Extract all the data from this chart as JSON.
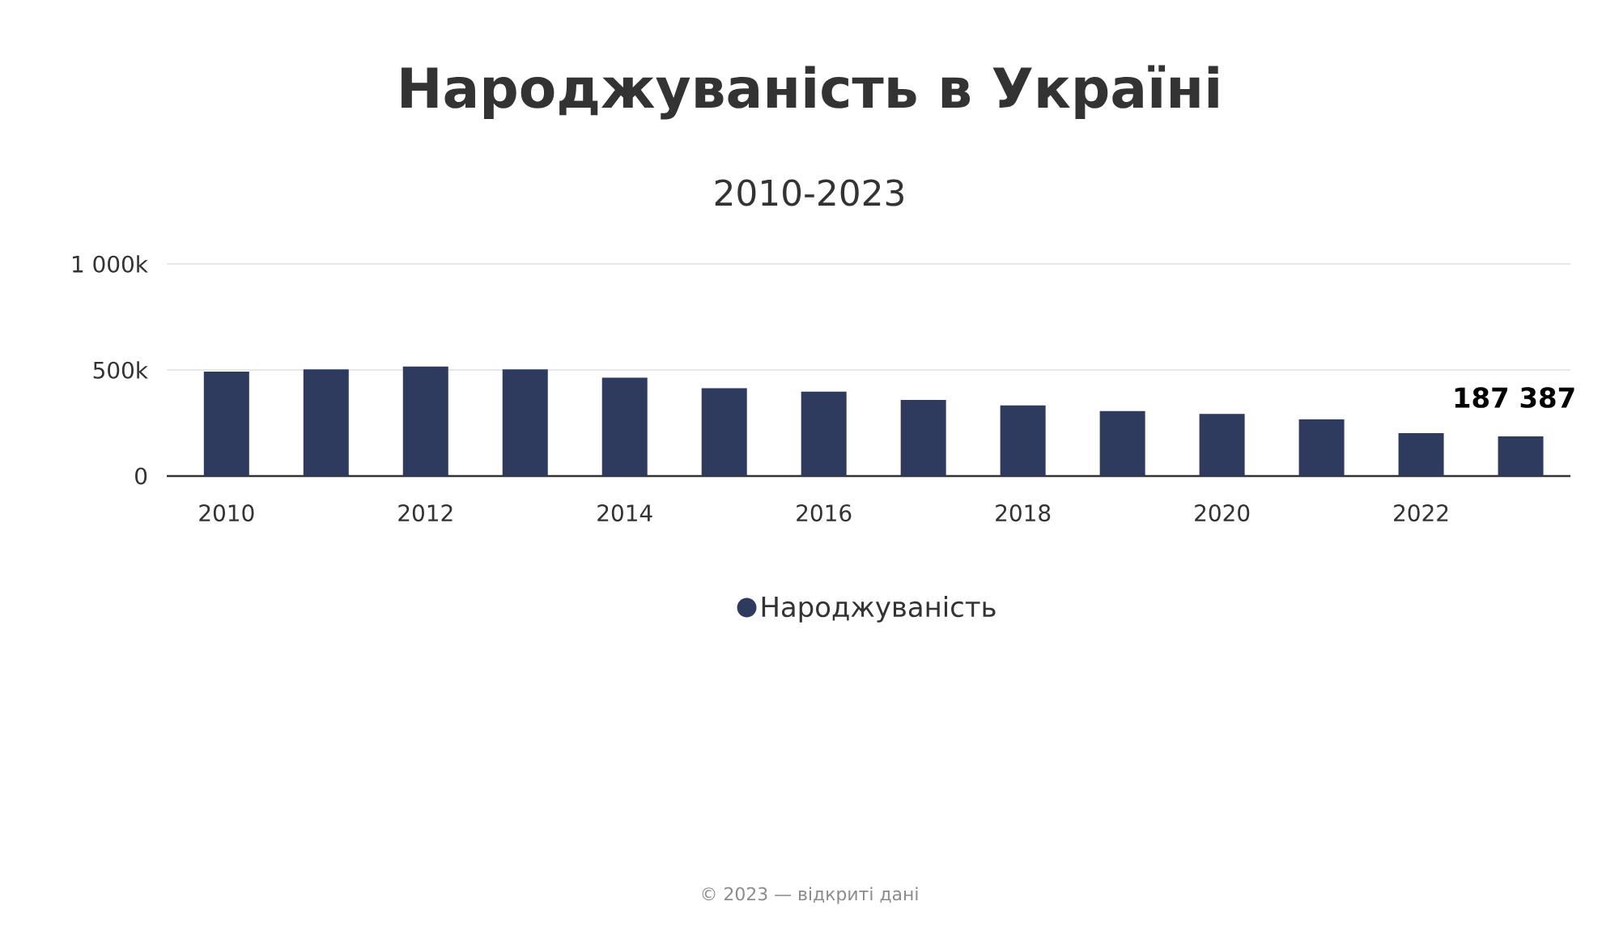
{
  "chart_data": {
    "type": "bar",
    "title": "Народжуваність в Україні",
    "subtitle": "2010-2023",
    "x": [
      2010,
      2011,
      2012,
      2013,
      2014,
      2015,
      2016,
      2017,
      2018,
      2019,
      2020,
      2021,
      2022,
      2023
    ],
    "xlim": [
      2009.4,
      2023.5
    ],
    "xticks": [
      2010,
      2012,
      2014,
      2016,
      2018,
      2020,
      2022
    ],
    "ylim": [
      0,
      1000000
    ],
    "yticks": [
      0,
      {
        "value": 500000,
        "label": "500k"
      },
      {
        "value": 1000000,
        "label": "1 000k"
      }
    ],
    "series": [
      {
        "name": "Народжуваність",
        "color": "#2e3b5e",
        "values": [
          492000,
          503000,
          516000,
          503000,
          464000,
          414000,
          398000,
          359000,
          333000,
          306000,
          293000,
          267000,
          202000,
          187387
        ],
        "value_labels": [
          null,
          null,
          null,
          null,
          null,
          null,
          null,
          null,
          null,
          null,
          null,
          null,
          null,
          "187 387"
        ]
      }
    ],
    "grid": "y",
    "legend": "bottom",
    "annotations": [
      "© 2023 — відкриті дані"
    ]
  }
}
